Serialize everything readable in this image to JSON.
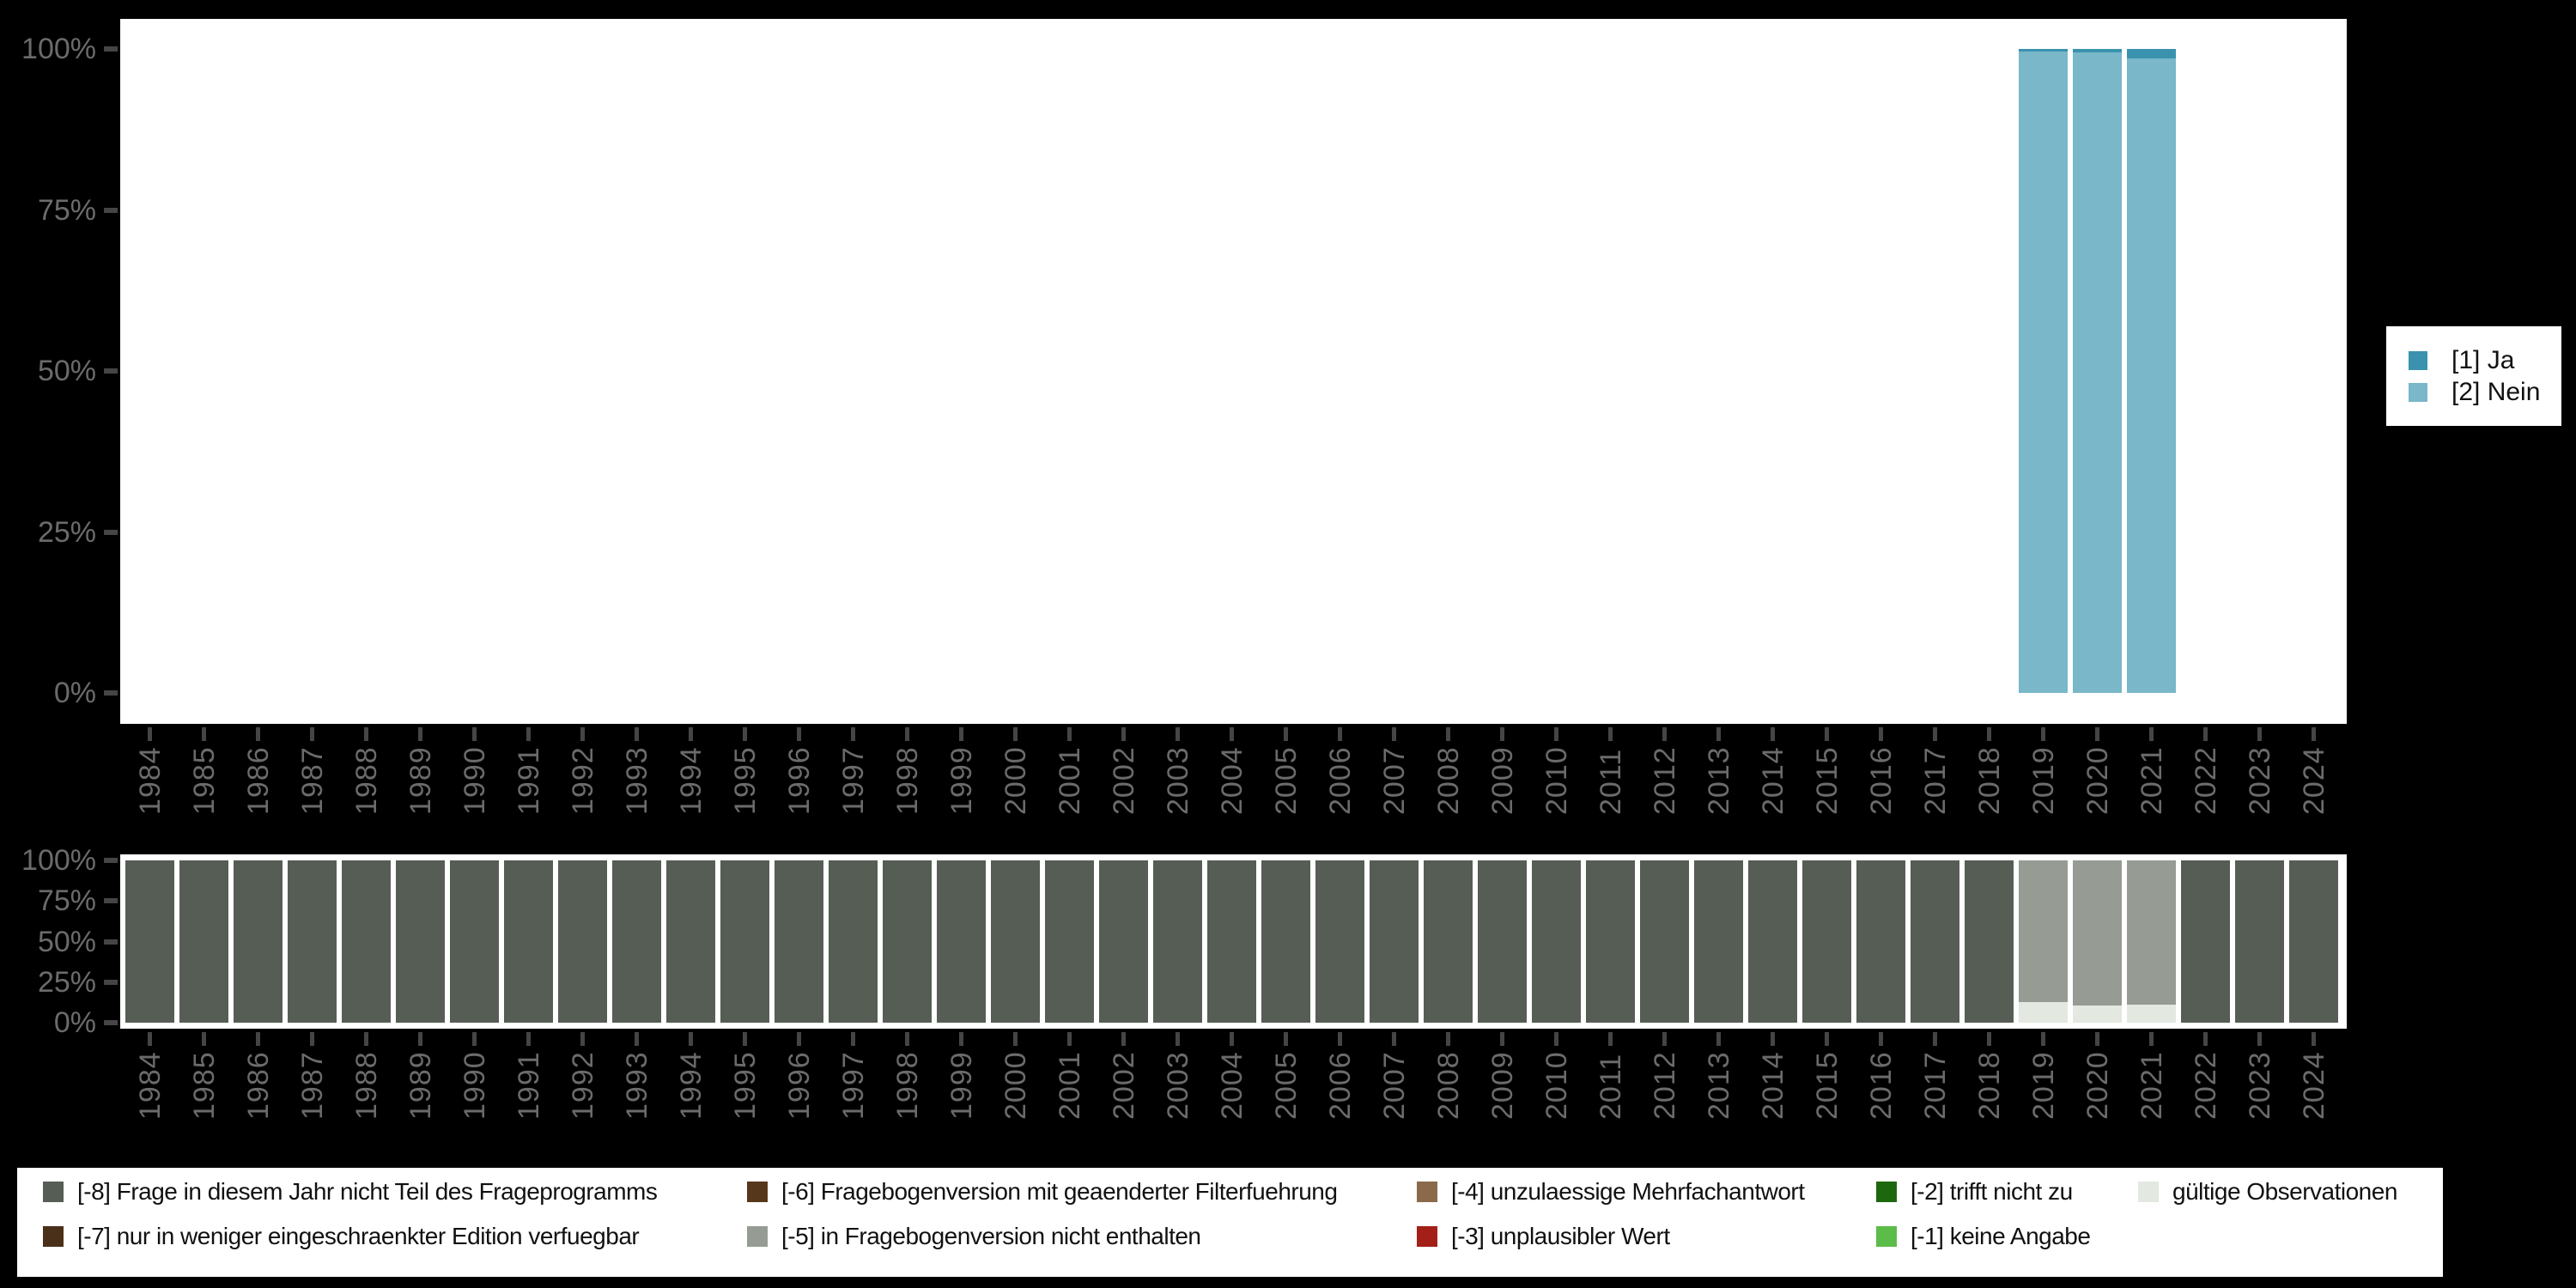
{
  "page": {
    "background": "#000000",
    "panel_color": "#ffffff",
    "axis_label_color": "#6b6b6b",
    "tick_color": "#454545",
    "legend_text_color": "#111111"
  },
  "chart_data": [
    {
      "id": "answers",
      "type": "stacked-bar-percent",
      "title": "",
      "xlabel": "",
      "ylabel": "",
      "ylim": [
        0,
        100
      ],
      "ytick_labels": [
        "100%",
        "75%",
        "50%",
        "25%",
        "0%"
      ],
      "grid": false,
      "legend_position": "right",
      "categories": [
        "1984",
        "1985",
        "1986",
        "1987",
        "1988",
        "1989",
        "1990",
        "1991",
        "1992",
        "1993",
        "1994",
        "1995",
        "1996",
        "1997",
        "1998",
        "1999",
        "2000",
        "2001",
        "2002",
        "2003",
        "2004",
        "2005",
        "2006",
        "2007",
        "2008",
        "2009",
        "2010",
        "2011",
        "2012",
        "2013",
        "2014",
        "2015",
        "2016",
        "2017",
        "2018",
        "2019",
        "2020",
        "2021",
        "2022",
        "2023",
        "2024"
      ],
      "series": [
        {
          "key": "ja",
          "name": "[1] Ja",
          "color": "#3a92ae",
          "values_default": 0,
          "values_by_year": {
            "2019": 0.4,
            "2020": 0.5,
            "2021": 1.5
          }
        },
        {
          "key": "nein",
          "name": "[2] Nein",
          "color": "#79b7c9",
          "values_default": 0,
          "values_by_year": {
            "2019": 99.6,
            "2020": 99.5,
            "2021": 98.5
          }
        }
      ]
    },
    {
      "id": "missings",
      "type": "stacked-bar-percent",
      "title": "",
      "xlabel": "",
      "ylabel": "",
      "ylim": [
        0,
        100
      ],
      "ytick_labels": [
        "100%",
        "75%",
        "50%",
        "25%",
        "0%"
      ],
      "grid": false,
      "legend_position": "bottom",
      "categories": [
        "1984",
        "1985",
        "1986",
        "1987",
        "1988",
        "1989",
        "1990",
        "1991",
        "1992",
        "1993",
        "1994",
        "1995",
        "1996",
        "1997",
        "1998",
        "1999",
        "2000",
        "2001",
        "2002",
        "2003",
        "2004",
        "2005",
        "2006",
        "2007",
        "2008",
        "2009",
        "2010",
        "2011",
        "2012",
        "2013",
        "2014",
        "2015",
        "2016",
        "2017",
        "2018",
        "2019",
        "2020",
        "2021",
        "2022",
        "2023",
        "2024"
      ],
      "series": [
        {
          "key": "-8",
          "name": "[-8] Frage in diesem Jahr nicht Teil des Frageprogramms",
          "color": "#565d55",
          "values_default": 100,
          "values_by_year": {
            "2019": 0,
            "2020": 0,
            "2021": 0
          }
        },
        {
          "key": "-7",
          "name": "[-7] nur in weniger eingeschraenkter Edition verfuegbar",
          "color": "#4a3019",
          "values_default": 0,
          "values_by_year": {}
        },
        {
          "key": "-6",
          "name": "[-6] Fragebogenversion mit geaenderter Filterfuehrung",
          "color": "#56371b",
          "values_default": 0,
          "values_by_year": {}
        },
        {
          "key": "-5",
          "name": "[-5] in Fragebogenversion nicht enthalten",
          "color": "#969c93",
          "values_default": 0,
          "values_by_year": {
            "2019": 87.5,
            "2020": 89.5,
            "2021": 89
          }
        },
        {
          "key": "-4",
          "name": "[-4] unzulaessige Mehrfachantwort",
          "color": "#8a6a4a",
          "values_default": 0,
          "values_by_year": {}
        },
        {
          "key": "-3",
          "name": "[-3] unplausibler Wert",
          "color": "#a32019",
          "values_default": 0,
          "values_by_year": {}
        },
        {
          "key": "-2",
          "name": "[-2] trifft nicht zu",
          "color": "#1d680f",
          "values_default": 0,
          "values_by_year": {}
        },
        {
          "key": "-1",
          "name": "[-1] keine Angabe",
          "color": "#5cbc49",
          "values_default": 0,
          "values_by_year": {}
        },
        {
          "key": "valid",
          "name": "gültige Observationen",
          "color": "#e3e8e1",
          "values_default": 0,
          "values_by_year": {
            "2019": 12.5,
            "2020": 10.5,
            "2021": 11
          }
        }
      ],
      "legend_columns": [
        [
          "-8",
          "-7"
        ],
        [
          "-6",
          "-5"
        ],
        [
          "-4",
          "-3"
        ],
        [
          "-2",
          "-1"
        ],
        [
          "valid"
        ]
      ]
    }
  ]
}
